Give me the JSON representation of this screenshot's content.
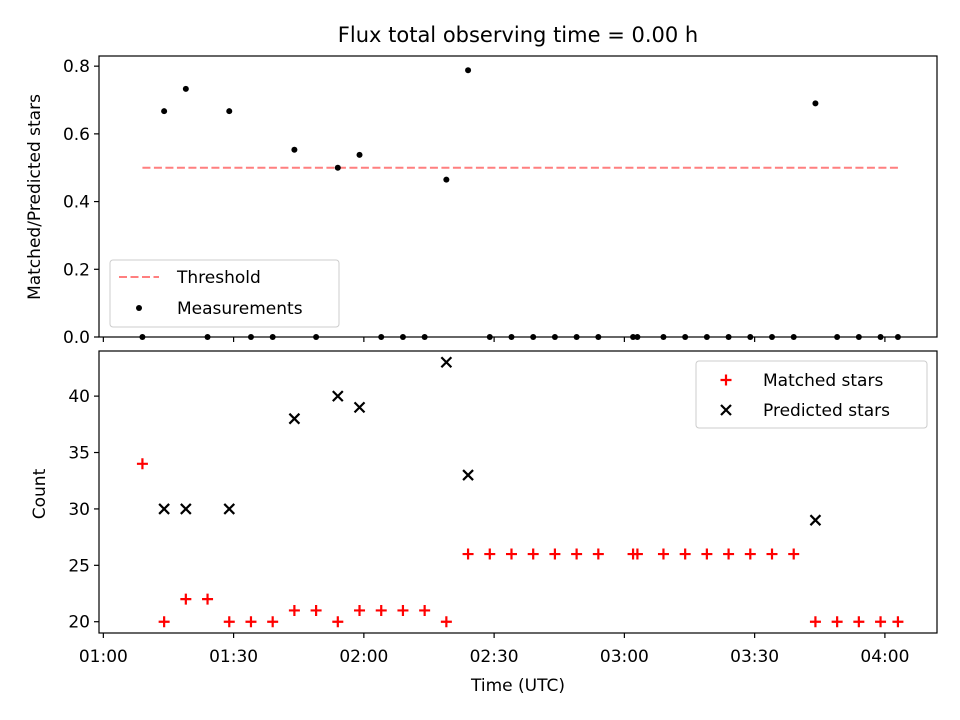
{
  "chart_data": [
    {
      "type": "scatter",
      "title": "Flux total observing time = 0.00 h",
      "xlabel": "",
      "ylabel": "Matched/Predicted stars",
      "xlim": [
        "00:59",
        "04:12"
      ],
      "ylim": [
        0,
        0.83
      ],
      "yticks": [
        0.0,
        0.2,
        0.4,
        0.6,
        0.8
      ],
      "ytick_labels": [
        "0.0",
        "0.2",
        "0.4",
        "0.6",
        "0.8"
      ],
      "legend_position": "lower-left",
      "threshold": {
        "name": "Threshold",
        "color": "#ff7f7f",
        "style": "dashed",
        "x": [
          "01:09",
          "04:03"
        ],
        "y": 0.5
      },
      "series": [
        {
          "name": "Measurements",
          "color": "#000000",
          "marker": "dot",
          "points": [
            {
              "x": "01:09",
              "y": 0.0
            },
            {
              "x": "01:14",
              "y": 0.667
            },
            {
              "x": "01:19",
              "y": 0.733
            },
            {
              "x": "01:24",
              "y": 0.0
            },
            {
              "x": "01:29",
              "y": 0.667
            },
            {
              "x": "01:34",
              "y": 0.0
            },
            {
              "x": "01:39",
              "y": 0.0
            },
            {
              "x": "01:44",
              "y": 0.553
            },
            {
              "x": "01:49",
              "y": 0.0
            },
            {
              "x": "01:54",
              "y": 0.5
            },
            {
              "x": "01:59",
              "y": 0.538
            },
            {
              "x": "02:04",
              "y": 0.0
            },
            {
              "x": "02:09",
              "y": 0.0
            },
            {
              "x": "02:14",
              "y": 0.0
            },
            {
              "x": "02:19",
              "y": 0.465
            },
            {
              "x": "02:24",
              "y": 0.788
            },
            {
              "x": "02:29",
              "y": 0.0
            },
            {
              "x": "02:34",
              "y": 0.0
            },
            {
              "x": "02:39",
              "y": 0.0
            },
            {
              "x": "02:44",
              "y": 0.0
            },
            {
              "x": "02:49",
              "y": 0.0
            },
            {
              "x": "02:54",
              "y": 0.0
            },
            {
              "x": "03:02",
              "y": 0.0
            },
            {
              "x": "03:03",
              "y": 0.0
            },
            {
              "x": "03:09",
              "y": 0.0
            },
            {
              "x": "03:14",
              "y": 0.0
            },
            {
              "x": "03:19",
              "y": 0.0
            },
            {
              "x": "03:24",
              "y": 0.0
            },
            {
              "x": "03:29",
              "y": 0.0
            },
            {
              "x": "03:34",
              "y": 0.0
            },
            {
              "x": "03:39",
              "y": 0.0
            },
            {
              "x": "03:44",
              "y": 0.69
            },
            {
              "x": "03:49",
              "y": 0.0
            },
            {
              "x": "03:54",
              "y": 0.0
            },
            {
              "x": "03:59",
              "y": 0.0
            },
            {
              "x": "04:03",
              "y": 0.0
            }
          ]
        }
      ]
    },
    {
      "type": "scatter",
      "title": "",
      "xlabel": "Time (UTC)",
      "ylabel": "Count",
      "xlim": [
        "00:59",
        "04:12"
      ],
      "ylim": [
        19,
        44
      ],
      "yticks": [
        20,
        25,
        30,
        35,
        40
      ],
      "ytick_labels": [
        "20",
        "25",
        "30",
        "35",
        "40"
      ],
      "xticks": [
        "01:00",
        "01:30",
        "02:00",
        "02:30",
        "03:00",
        "03:30",
        "04:00"
      ],
      "legend_position": "top-right",
      "series": [
        {
          "name": "Matched stars",
          "color": "#ff0000",
          "marker": "plus",
          "points": [
            {
              "x": "01:09",
              "y": 34
            },
            {
              "x": "01:14",
              "y": 20
            },
            {
              "x": "01:19",
              "y": 22
            },
            {
              "x": "01:24",
              "y": 22
            },
            {
              "x": "01:29",
              "y": 20
            },
            {
              "x": "01:34",
              "y": 20
            },
            {
              "x": "01:39",
              "y": 20
            },
            {
              "x": "01:44",
              "y": 21
            },
            {
              "x": "01:49",
              "y": 21
            },
            {
              "x": "01:54",
              "y": 20
            },
            {
              "x": "01:59",
              "y": 21
            },
            {
              "x": "02:04",
              "y": 21
            },
            {
              "x": "02:09",
              "y": 21
            },
            {
              "x": "02:14",
              "y": 21
            },
            {
              "x": "02:19",
              "y": 20
            },
            {
              "x": "02:24",
              "y": 26
            },
            {
              "x": "02:29",
              "y": 26
            },
            {
              "x": "02:34",
              "y": 26
            },
            {
              "x": "02:39",
              "y": 26
            },
            {
              "x": "02:44",
              "y": 26
            },
            {
              "x": "02:49",
              "y": 26
            },
            {
              "x": "02:54",
              "y": 26
            },
            {
              "x": "03:02",
              "y": 26
            },
            {
              "x": "03:03",
              "y": 26
            },
            {
              "x": "03:09",
              "y": 26
            },
            {
              "x": "03:14",
              "y": 26
            },
            {
              "x": "03:19",
              "y": 26
            },
            {
              "x": "03:24",
              "y": 26
            },
            {
              "x": "03:29",
              "y": 26
            },
            {
              "x": "03:34",
              "y": 26
            },
            {
              "x": "03:39",
              "y": 26
            },
            {
              "x": "03:44",
              "y": 20
            },
            {
              "x": "03:49",
              "y": 20
            },
            {
              "x": "03:54",
              "y": 20
            },
            {
              "x": "03:59",
              "y": 20
            },
            {
              "x": "04:03",
              "y": 20
            }
          ]
        },
        {
          "name": "Predicted stars",
          "color": "#000000",
          "marker": "x",
          "points": [
            {
              "x": "01:14",
              "y": 30
            },
            {
              "x": "01:19",
              "y": 30
            },
            {
              "x": "01:29",
              "y": 30
            },
            {
              "x": "01:44",
              "y": 38
            },
            {
              "x": "01:54",
              "y": 40
            },
            {
              "x": "01:59",
              "y": 39
            },
            {
              "x": "02:19",
              "y": 43
            },
            {
              "x": "02:24",
              "y": 33
            },
            {
              "x": "03:44",
              "y": 29
            }
          ]
        }
      ]
    }
  ]
}
